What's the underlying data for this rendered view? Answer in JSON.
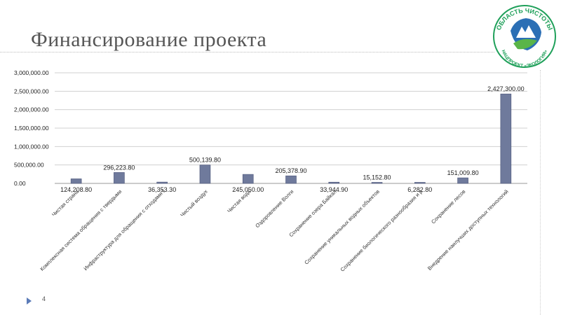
{
  "slide": {
    "title": "Финансирование проекта",
    "page_number": "4"
  },
  "logo": {
    "top_text": "ОБЛАСТЬ ЧИСТОТЫ",
    "bottom_text": "НАЦПРОЕКТ «ЭКОЛОГИЯ»",
    "colors": {
      "ring": "#1fa05a",
      "water": "#2b6fb5",
      "leaf": "#5ab548"
    }
  },
  "chart_data": {
    "type": "bar",
    "title": "",
    "xlabel": "",
    "ylabel": "",
    "ylim": [
      0,
      3000000
    ],
    "yticks": [
      0,
      500000,
      1000000,
      1500000,
      2000000,
      2500000,
      3000000
    ],
    "ytick_labels": [
      "0.00",
      "500,000.00",
      "1,000,000.00",
      "1,500,000.00",
      "2,000,000.00",
      "2,500,000.00",
      "3,000,000.00"
    ],
    "grid": true,
    "bar_color": "#6f7a9c",
    "categories": [
      "Чистая страна",
      "Комплексная система обращения с твердыми",
      "Инфраструктура для обращения с отходами I",
      "Чистый воздух",
      "Чистая вода",
      "Оздоровление Волги",
      "Сохранение озера Байкал",
      "Сохранение уникальных водных объектов",
      "Сохранение биологического разнообразия и р",
      "Сохранение лесов",
      "Внедрение наилучших доступных технологий"
    ],
    "values": [
      124208.8,
      296223.8,
      36353.3,
      500139.8,
      245050.0,
      205378.9,
      33944.9,
      15152.8,
      6282.8,
      151009.8,
      2427300.0
    ],
    "data_labels": [
      "124,208.80",
      "296,223.80",
      "36,353.30",
      "500,139.80",
      "245,050.00",
      "205,378.90",
      "33,944.90",
      "15,152.80",
      "6,282.80",
      "151,009.80",
      "2,427,300.00"
    ]
  }
}
